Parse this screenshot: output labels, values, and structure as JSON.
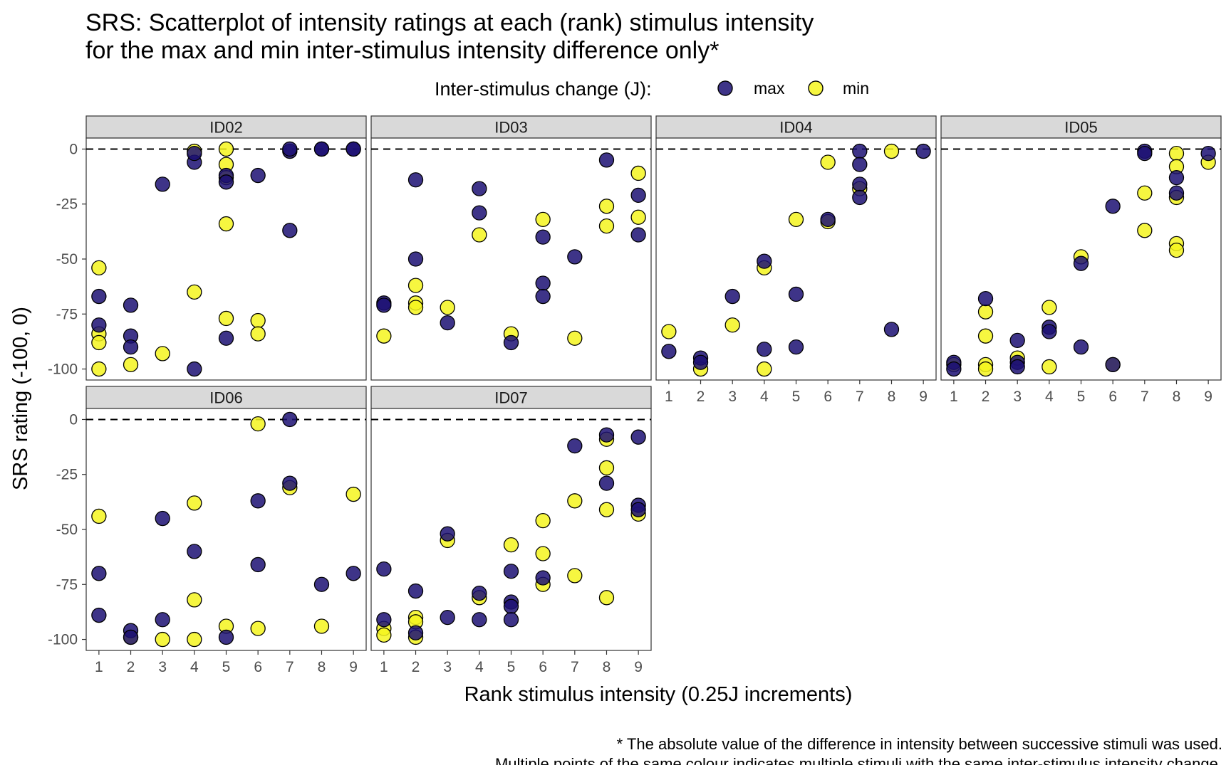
{
  "chart_data": {
    "type": "scatter",
    "title_lines": [
      "SRS: Scatterplot of intensity ratings at each (rank) stimulus intensity",
      "for the max and min inter-stimulus intensity difference only*"
    ],
    "xlabel": "Rank stimulus intensity (0.25J increments)",
    "ylabel": "SRS rating (-100, 0)",
    "caption_lines": [
      "* The absolute value of the difference in intensity between successive stimuli was used.",
      "Multiple points of the same colour indicates multiple stimuli with the same inter-stimulus intensity change."
    ],
    "legend": {
      "title": "Inter-stimulus change (J):",
      "position": "top",
      "entries": [
        {
          "key": "max",
          "label": "max",
          "color": "#1c1073"
        },
        {
          "key": "min",
          "label": "min",
          "color": "#f5f51e"
        }
      ]
    },
    "xlim": [
      0.6,
      9.4
    ],
    "ylim": [
      -105,
      5
    ],
    "x_ticks": [
      "1",
      "2",
      "3",
      "4",
      "5",
      "6",
      "7",
      "8",
      "9"
    ],
    "y_ticks": [
      {
        "value": 0,
        "label": "0"
      },
      {
        "value": -25,
        "label": "-25"
      },
      {
        "value": -50,
        "label": "-50"
      },
      {
        "value": -75,
        "label": "-75"
      },
      {
        "value": -100,
        "label": "-100"
      }
    ],
    "reference_line": {
      "y": 0,
      "style": "dashed"
    },
    "grid": false,
    "panels": [
      {
        "id": "ID02",
        "max": [
          [
            1,
            -67
          ],
          [
            1,
            -80
          ],
          [
            2,
            -71
          ],
          [
            2,
            -85
          ],
          [
            2,
            -90
          ],
          [
            3,
            -16
          ],
          [
            4,
            -6
          ],
          [
            4,
            -2
          ],
          [
            4,
            -100
          ],
          [
            5,
            -12
          ],
          [
            5,
            -15
          ],
          [
            5,
            -86
          ],
          [
            6,
            -12
          ],
          [
            7,
            -37
          ],
          [
            7,
            -1
          ],
          [
            7,
            0
          ],
          [
            8,
            0
          ],
          [
            8,
            0
          ],
          [
            9,
            0
          ],
          [
            9,
            0
          ]
        ],
        "min": [
          [
            1,
            -54
          ],
          [
            1,
            -84
          ],
          [
            1,
            -88
          ],
          [
            1,
            -100
          ],
          [
            2,
            -98
          ],
          [
            3,
            -93
          ],
          [
            4,
            -1
          ],
          [
            4,
            -65
          ],
          [
            5,
            0
          ],
          [
            5,
            -7
          ],
          [
            5,
            -13
          ],
          [
            5,
            -34
          ],
          [
            5,
            -77
          ],
          [
            6,
            -78
          ],
          [
            6,
            -84
          ]
        ]
      },
      {
        "id": "ID03",
        "max": [
          [
            1,
            -70
          ],
          [
            1,
            -71
          ],
          [
            2,
            -14
          ],
          [
            2,
            -50
          ],
          [
            3,
            -79
          ],
          [
            4,
            -18
          ],
          [
            4,
            -29
          ],
          [
            5,
            -88
          ],
          [
            6,
            -40
          ],
          [
            6,
            -61
          ],
          [
            6,
            -67
          ],
          [
            7,
            -49
          ],
          [
            8,
            -5
          ],
          [
            9,
            -21
          ],
          [
            9,
            -39
          ]
        ],
        "min": [
          [
            1,
            -85
          ],
          [
            2,
            -62
          ],
          [
            2,
            -70
          ],
          [
            2,
            -72
          ],
          [
            3,
            -72
          ],
          [
            4,
            -39
          ],
          [
            5,
            -84
          ],
          [
            6,
            -32
          ],
          [
            7,
            -86
          ],
          [
            8,
            -26
          ],
          [
            8,
            -35
          ],
          [
            9,
            -11
          ],
          [
            9,
            -31
          ]
        ]
      },
      {
        "id": "ID04",
        "max": [
          [
            1,
            -92
          ],
          [
            2,
            -95
          ],
          [
            2,
            -97
          ],
          [
            3,
            -67
          ],
          [
            4,
            -51
          ],
          [
            4,
            -91
          ],
          [
            5,
            -66
          ],
          [
            5,
            -90
          ],
          [
            6,
            -32
          ],
          [
            7,
            -1
          ],
          [
            7,
            -7
          ],
          [
            7,
            -16
          ],
          [
            7,
            -22
          ],
          [
            8,
            -82
          ],
          [
            9,
            -1
          ]
        ],
        "min": [
          [
            1,
            -83
          ],
          [
            2,
            -100
          ],
          [
            3,
            -80
          ],
          [
            4,
            -54
          ],
          [
            4,
            -100
          ],
          [
            5,
            -32
          ],
          [
            6,
            -6
          ],
          [
            6,
            -33
          ],
          [
            7,
            -18
          ],
          [
            8,
            -1
          ]
        ]
      },
      {
        "id": "ID05",
        "max": [
          [
            1,
            -97
          ],
          [
            1,
            -100
          ],
          [
            2,
            -68
          ],
          [
            3,
            -87
          ],
          [
            3,
            -97
          ],
          [
            3,
            -99
          ],
          [
            4,
            -81
          ],
          [
            4,
            -83
          ],
          [
            5,
            -52
          ],
          [
            5,
            -90
          ],
          [
            6,
            -26
          ],
          [
            6,
            -98
          ],
          [
            7,
            -1
          ],
          [
            7,
            -2
          ],
          [
            8,
            -13
          ],
          [
            8,
            -20
          ],
          [
            9,
            -2
          ]
        ],
        "min": [
          [
            1,
            -98
          ],
          [
            2,
            -74
          ],
          [
            2,
            -85
          ],
          [
            2,
            -98
          ],
          [
            2,
            -100
          ],
          [
            3,
            -95
          ],
          [
            4,
            -72
          ],
          [
            4,
            -99
          ],
          [
            5,
            -49
          ],
          [
            6,
            -98
          ],
          [
            7,
            -20
          ],
          [
            7,
            -37
          ],
          [
            8,
            -2
          ],
          [
            8,
            -8
          ],
          [
            8,
            -22
          ],
          [
            8,
            -43
          ],
          [
            8,
            -46
          ],
          [
            9,
            -6
          ]
        ]
      },
      {
        "id": "ID06",
        "max": [
          [
            1,
            -70
          ],
          [
            1,
            -89
          ],
          [
            2,
            -96
          ],
          [
            2,
            -99
          ],
          [
            3,
            -45
          ],
          [
            3,
            -91
          ],
          [
            4,
            -60
          ],
          [
            5,
            -99
          ],
          [
            6,
            -37
          ],
          [
            6,
            -66
          ],
          [
            7,
            0
          ],
          [
            7,
            -29
          ],
          [
            8,
            -75
          ],
          [
            9,
            -70
          ]
        ],
        "min": [
          [
            1,
            -44
          ],
          [
            2,
            -99
          ],
          [
            3,
            -100
          ],
          [
            4,
            -38
          ],
          [
            4,
            -82
          ],
          [
            4,
            -100
          ],
          [
            5,
            -94
          ],
          [
            6,
            -2
          ],
          [
            6,
            -95
          ],
          [
            7,
            -31
          ],
          [
            8,
            -94
          ],
          [
            9,
            -34
          ]
        ]
      },
      {
        "id": "ID07",
        "max": [
          [
            1,
            -68
          ],
          [
            1,
            -91
          ],
          [
            2,
            -78
          ],
          [
            2,
            -97
          ],
          [
            3,
            -52
          ],
          [
            3,
            -90
          ],
          [
            4,
            -79
          ],
          [
            4,
            -91
          ],
          [
            5,
            -69
          ],
          [
            5,
            -83
          ],
          [
            5,
            -85
          ],
          [
            5,
            -91
          ],
          [
            6,
            -72
          ],
          [
            7,
            -12
          ],
          [
            8,
            -7
          ],
          [
            8,
            -29
          ],
          [
            9,
            -8
          ],
          [
            9,
            -39
          ],
          [
            9,
            -41
          ]
        ],
        "min": [
          [
            1,
            -95
          ],
          [
            1,
            -98
          ],
          [
            2,
            -90
          ],
          [
            2,
            -92
          ],
          [
            2,
            -99
          ],
          [
            3,
            -55
          ],
          [
            4,
            -81
          ],
          [
            5,
            -57
          ],
          [
            6,
            -46
          ],
          [
            6,
            -61
          ],
          [
            6,
            -75
          ],
          [
            7,
            -37
          ],
          [
            7,
            -71
          ],
          [
            8,
            -9
          ],
          [
            8,
            -22
          ],
          [
            8,
            -41
          ],
          [
            8,
            -81
          ],
          [
            9,
            -43
          ]
        ]
      }
    ]
  }
}
